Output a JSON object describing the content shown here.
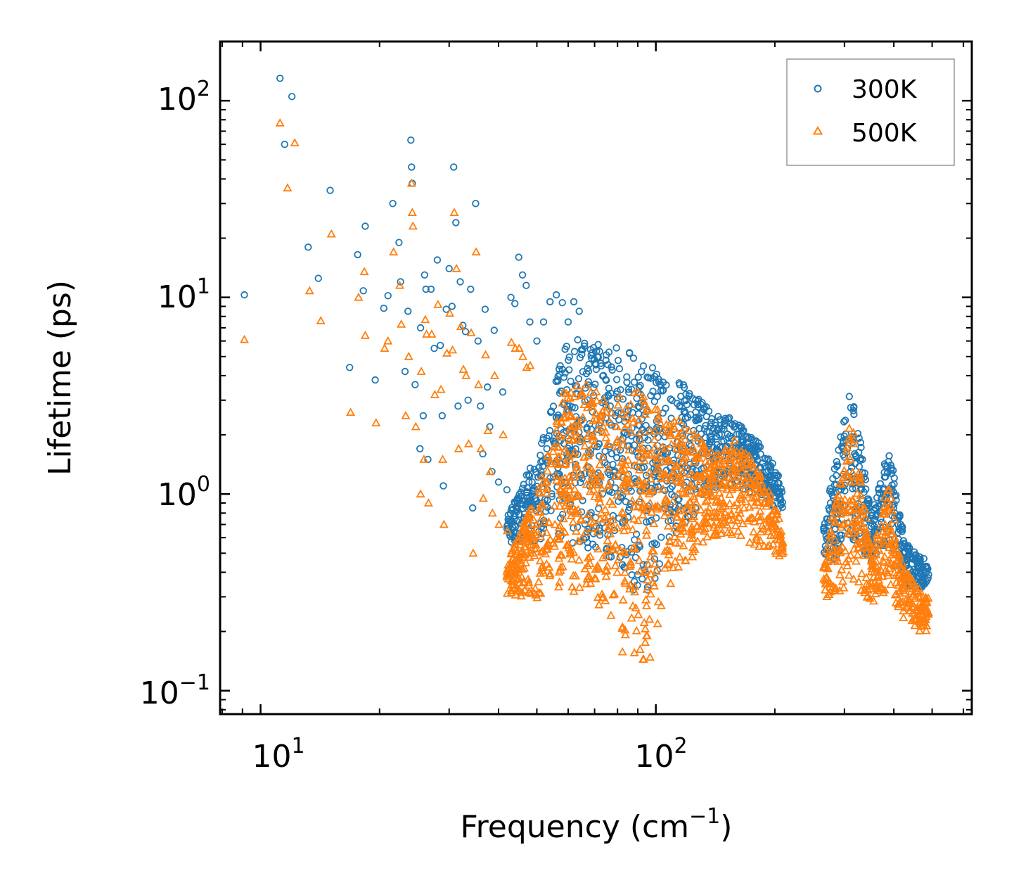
{
  "chart_data": {
    "type": "scatter",
    "title": "",
    "xlabel": "Frequency (cm",
    "xlabel_sup": "−1",
    "xlabel_tail": ")",
    "ylabel": "Lifetime (ps)",
    "xscale": "log",
    "yscale": "log",
    "xlim": [
      7.9,
      630
    ],
    "ylim": [
      0.076,
      200
    ],
    "x_ticks": [
      {
        "value": 10,
        "base": "10",
        "exp": "1"
      },
      {
        "value": 100,
        "base": "10",
        "exp": "2"
      }
    ],
    "y_ticks": [
      {
        "value": 0.1,
        "base": "10",
        "exp": "−1"
      },
      {
        "value": 1,
        "base": "10",
        "exp": "0"
      },
      {
        "value": 10,
        "base": "10",
        "exp": "1"
      },
      {
        "value": 100,
        "base": "10",
        "exp": "2"
      }
    ],
    "legend_position": "top-right",
    "series": [
      {
        "name": "300K",
        "marker": "circle",
        "color": "#1f77b4",
        "points": [
          [
            9.1,
            10.3
          ],
          [
            11.2,
            130
          ],
          [
            11.5,
            60
          ],
          [
            12,
            105
          ],
          [
            13.2,
            18
          ],
          [
            14,
            12.5
          ],
          [
            15,
            35
          ],
          [
            16.8,
            4.4
          ],
          [
            17.6,
            16.5
          ],
          [
            18.2,
            10.8
          ],
          [
            18.4,
            23
          ],
          [
            19.5,
            3.8
          ],
          [
            20.5,
            8.8
          ],
          [
            21,
            10.2
          ],
          [
            21.6,
            30
          ],
          [
            22.4,
            19
          ],
          [
            22.6,
            12
          ],
          [
            23.2,
            4.2
          ],
          [
            23.6,
            8.5
          ],
          [
            24,
            63
          ],
          [
            24.1,
            46
          ],
          [
            24.2,
            38
          ],
          [
            24.6,
            3.6
          ],
          [
            25.3,
            1.7
          ],
          [
            25.4,
            7
          ],
          [
            25.8,
            2.5
          ],
          [
            26,
            13
          ],
          [
            26.2,
            11
          ],
          [
            26.5,
            1.5
          ],
          [
            27,
            11
          ],
          [
            27.5,
            5.5
          ],
          [
            28,
            15.5
          ],
          [
            28.5,
            5.7
          ],
          [
            28.8,
            2.5
          ],
          [
            29,
            1.1
          ],
          [
            29.5,
            8.7
          ],
          [
            30,
            14
          ],
          [
            30.5,
            9
          ],
          [
            30.8,
            46
          ],
          [
            31.2,
            24
          ],
          [
            31.6,
            2.8
          ],
          [
            32,
            12
          ],
          [
            32.5,
            7.2
          ],
          [
            33,
            6.7
          ],
          [
            33.5,
            3
          ],
          [
            34,
            11
          ],
          [
            34.4,
            0.85
          ],
          [
            35,
            30
          ],
          [
            35.5,
            6
          ],
          [
            36,
            2.8
          ],
          [
            36.5,
            1.6
          ],
          [
            37,
            8.7
          ],
          [
            37.5,
            3.5
          ],
          [
            38,
            2.2
          ],
          [
            38.5,
            1.3
          ],
          [
            39,
            6.8
          ],
          [
            40,
            1.15
          ],
          [
            41,
            3.3
          ],
          [
            42,
            1.05
          ],
          [
            43,
            10
          ],
          [
            44,
            9.3
          ],
          [
            45,
            16
          ],
          [
            46,
            13
          ],
          [
            47,
            11.5
          ],
          [
            48,
            7.5
          ],
          [
            50,
            6
          ],
          [
            52,
            7.5
          ],
          [
            54,
            9.5
          ],
          [
            56,
            10.3
          ],
          [
            58,
            9.4
          ],
          [
            60,
            7.5
          ],
          [
            62,
            9.5
          ],
          [
            64,
            8.5
          ]
        ]
      },
      {
        "name": "500K",
        "marker": "triangle",
        "color": "#ff7f0e",
        "points": [
          [
            9.1,
            6.1
          ],
          [
            11.2,
            77
          ],
          [
            11.7,
            36
          ],
          [
            12.2,
            61
          ],
          [
            13.3,
            10.8
          ],
          [
            14.2,
            7.6
          ],
          [
            15.1,
            21
          ],
          [
            16.9,
            2.6
          ],
          [
            17.7,
            10
          ],
          [
            18.3,
            13.5
          ],
          [
            18.4,
            6.4
          ],
          [
            19.6,
            2.3
          ],
          [
            20.6,
            5.5
          ],
          [
            21,
            6
          ],
          [
            21.7,
            17
          ],
          [
            22.5,
            11.5
          ],
          [
            22.7,
            7.3
          ],
          [
            23.3,
            2.5
          ],
          [
            23.7,
            5
          ],
          [
            24.1,
            38
          ],
          [
            24.2,
            27
          ],
          [
            24.3,
            23
          ],
          [
            24.7,
            2.2
          ],
          [
            25.4,
            1.0
          ],
          [
            25.5,
            4.2
          ],
          [
            25.9,
            1.5
          ],
          [
            26.1,
            7.7
          ],
          [
            26.3,
            6.5
          ],
          [
            26.6,
            0.9
          ],
          [
            27.1,
            6.5
          ],
          [
            27.6,
            3.2
          ],
          [
            28.1,
            9.2
          ],
          [
            28.6,
            3.4
          ],
          [
            28.9,
            1.5
          ],
          [
            29.1,
            0.7
          ],
          [
            29.6,
            5.2
          ],
          [
            30.1,
            8.3
          ],
          [
            30.6,
            5.4
          ],
          [
            30.9,
            27
          ],
          [
            31.3,
            14
          ],
          [
            31.7,
            1.7
          ],
          [
            32.1,
            7.1
          ],
          [
            32.6,
            4.3
          ],
          [
            33.1,
            4
          ],
          [
            33.6,
            1.8
          ],
          [
            34.1,
            6.6
          ],
          [
            34.5,
            0.5
          ],
          [
            35.1,
            17
          ],
          [
            35.6,
            3.6
          ],
          [
            36.1,
            1.7
          ],
          [
            36.6,
            0.95
          ],
          [
            37.1,
            5.1
          ],
          [
            37.6,
            2.1
          ],
          [
            38.1,
            1.3
          ],
          [
            38.6,
            0.8
          ],
          [
            39.1,
            4
          ],
          [
            40.1,
            0.7
          ],
          [
            41.1,
            2
          ],
          [
            42.1,
            0.65
          ],
          [
            43.1,
            5.9
          ],
          [
            44.1,
            5.5
          ],
          [
            45.1,
            5.5
          ],
          [
            46.1,
            5
          ],
          [
            47.1,
            4.4
          ],
          [
            48.1,
            4.5
          ]
        ]
      }
    ]
  }
}
